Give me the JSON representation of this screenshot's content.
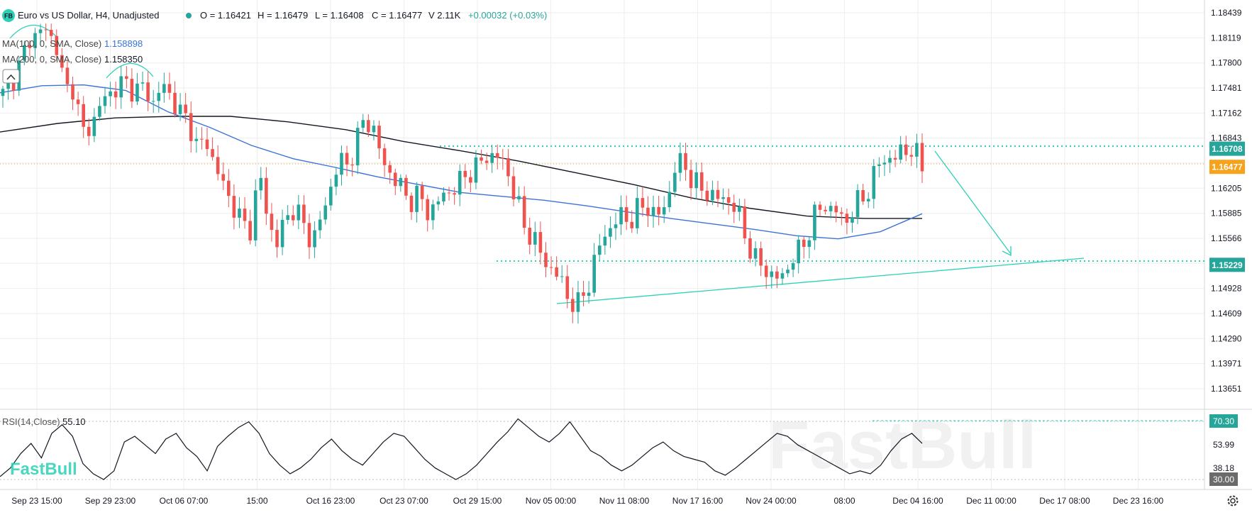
{
  "header": {
    "logo": "FB",
    "title": "Euro vs US Dollar, H4, Unadjusted",
    "status_color": "#26a69a",
    "open": "O = 1.16421",
    "high": "H = 1.16479",
    "low": "L = 1.16408",
    "close": "C = 1.16477",
    "volume": "V 2.11K",
    "change": "+0.00032 (+0.03%)"
  },
  "indicators": {
    "ma100_label": "MA(100, 0, SMA, Close)",
    "ma100_value": "1.158898",
    "ma100_color": "#3b73d6",
    "ma200_label": "MA(200, 0, SMA, Close)",
    "ma200_value": "1.158350",
    "ma200_color": "#131722",
    "collapse_icon": "chevron-up-icon"
  },
  "rsi": {
    "label": "RSI(14,Close)",
    "value": "55.10",
    "ticks": [
      "70.30",
      "53.99",
      "38.18",
      "30.00"
    ]
  },
  "watermark": "FastBull",
  "settings_icon": "gear-icon",
  "colors": {
    "up": "#26a69a",
    "down": "#ef5350",
    "trend": "#2ad1b6",
    "price_tag": "#f7a21b"
  },
  "chart_data": {
    "type": "candlestick",
    "symbol": "Euro vs US Dollar",
    "timeframe": "H4",
    "y_ticks": [
      "1.18439",
      "1.18119",
      "1.17800",
      "1.17481",
      "1.17162",
      "1.16843",
      "1.16525",
      "1.16205",
      "1.15885",
      "1.15566",
      "1.15248",
      "1.14928",
      "1.14609",
      "1.14290",
      "1.13971",
      "1.13651"
    ],
    "ylim": [
      1.1349,
      1.186
    ],
    "x_labels": [
      "Sep 23 15:00",
      "Sep 29 23:00",
      "Oct 06 07:00",
      "15:00",
      "Oct 16 23:00",
      "Oct 23 07:00",
      "Oct 29 15:00",
      "Nov 05 00:00",
      "Nov 11 08:00",
      "Nov 17 16:00",
      "Nov 24 00:00",
      "08:00",
      "Dec 04 16:00",
      "Dec 11 00:00",
      "Dec 17 08:00",
      "Dec 23 16:00"
    ],
    "price_tags": [
      {
        "label": "1.16708",
        "value": 1.16708,
        "color": "#26a69a"
      },
      {
        "label": "1.16477",
        "value": 1.16477,
        "color": "#f7a21b"
      },
      {
        "label": "1.15229",
        "value": 1.15229,
        "color": "#26a69a"
      }
    ],
    "resistance_level": 1.16708,
    "support_level": 1.15229,
    "close_path": [
      1.1738,
      1.1758,
      1.1778,
      1.1812,
      1.1818,
      1.1822,
      1.1805,
      1.1745,
      1.1752,
      1.1688,
      1.1702,
      1.1725,
      1.1742,
      1.175,
      1.1754,
      1.1745,
      1.1748,
      1.173,
      1.175,
      1.174,
      1.1715,
      1.1708,
      1.1672,
      1.168,
      1.1652,
      1.162,
      1.1602,
      1.1575,
      1.157,
      1.164,
      1.158,
      1.155,
      1.1582,
      1.1598,
      1.1572,
      1.1554,
      1.158,
      1.162,
      1.1655,
      1.165,
      1.168,
      1.171,
      1.1695,
      1.165,
      1.164,
      1.162,
      1.1605,
      1.1612,
      1.159,
      1.16,
      1.1612,
      1.1622,
      1.163,
      1.1645,
      1.165,
      1.1665,
      1.166,
      1.1645,
      1.161,
      1.157,
      1.156,
      1.153,
      1.152,
      1.1505,
      1.148,
      1.147,
      1.149,
      1.153,
      1.156,
      1.1575,
      1.1585,
      1.158,
      1.1595,
      1.1598,
      1.1582,
      1.16,
      1.1645,
      1.1655,
      1.163,
      1.1618,
      1.1615,
      1.1605,
      1.1608,
      1.1592,
      1.156,
      1.153,
      1.152,
      1.151,
      1.1502,
      1.1528,
      1.1538,
      1.156,
      1.159,
      1.1598,
      1.1595,
      1.1578,
      1.159,
      1.1605,
      1.162,
      1.165,
      1.166,
      1.1658,
      1.1672,
      1.1668,
      1.1648
    ],
    "ma100": [
      1.1742,
      1.1751,
      1.1752,
      1.1745,
      1.1718,
      1.1698,
      1.1675,
      1.1658,
      1.1647,
      1.1635,
      1.1625,
      1.1615,
      1.161,
      1.1605,
      1.1598,
      1.159,
      1.1582,
      1.1575,
      1.1568,
      1.156,
      1.1556,
      1.1565,
      1.1588
    ],
    "ma200": [
      1.1692,
      1.1703,
      1.171,
      1.1712,
      1.1712,
      1.1705,
      1.1695,
      1.168,
      1.1668,
      1.1655,
      1.164,
      1.1625,
      1.1608,
      1.1595,
      1.1585,
      1.1582,
      1.1582
    ],
    "rsi_values": [
      32,
      38,
      48,
      55,
      45,
      62,
      68,
      60,
      41,
      34,
      30,
      36,
      56,
      60,
      54,
      48,
      58,
      62,
      52,
      46,
      36,
      53,
      60,
      66,
      70,
      62,
      48,
      40,
      34,
      38,
      44,
      52,
      58,
      50,
      44,
      40,
      48,
      56,
      62,
      60,
      52,
      44,
      38,
      34,
      30,
      34,
      40,
      48,
      56,
      63,
      72,
      66,
      60,
      56,
      62,
      70,
      60,
      50,
      46,
      40,
      36,
      40,
      46,
      52,
      56,
      50,
      46,
      44,
      42,
      36,
      33,
      38,
      44,
      50,
      56,
      62,
      60,
      54,
      50,
      46,
      42,
      38,
      34,
      36,
      34,
      40,
      50,
      58,
      62,
      55
    ]
  }
}
